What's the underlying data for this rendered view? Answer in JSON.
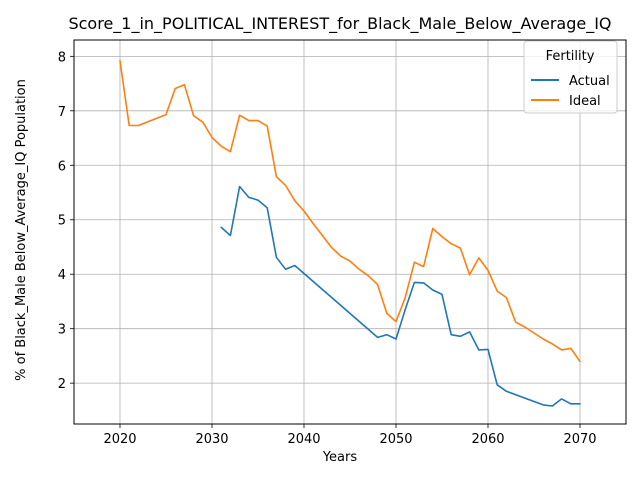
{
  "chart_data": {
    "type": "line",
    "title": "Score_1_in_POLITICAL_INTEREST_for_Black_Male_Below_Average_IQ",
    "xlabel": "Years",
    "ylabel": "% of Black_Male Below_Average_IQ Population",
    "xlim": [
      2015,
      2075
    ],
    "ylim": [
      1.25,
      8.3
    ],
    "xticks": [
      2020,
      2030,
      2040,
      2050,
      2060,
      2070
    ],
    "yticks": [
      2,
      3,
      4,
      5,
      6,
      7,
      8
    ],
    "grid": true,
    "legend": {
      "title": "Fertility",
      "placement": "top-right"
    },
    "series": [
      {
        "name": "Actual",
        "color": "#1f77b4",
        "x": [
          2031,
          2032,
          2033,
          2034,
          2035,
          2036,
          2037,
          2038,
          2039,
          2048,
          2049,
          2050,
          2051,
          2052,
          2053,
          2054,
          2055,
          2056,
          2057,
          2058,
          2059,
          2060,
          2061,
          2062,
          2066,
          2067,
          2068,
          2069,
          2070
        ],
        "y": [
          4.86,
          4.71,
          5.61,
          5.41,
          5.36,
          5.22,
          4.31,
          4.09,
          4.16,
          2.84,
          2.89,
          2.81,
          3.35,
          3.85,
          3.84,
          3.71,
          3.63,
          2.89,
          2.86,
          2.94,
          2.61,
          2.62,
          1.97,
          1.85,
          1.6,
          1.58,
          1.71,
          1.62,
          1.62
        ]
      },
      {
        "name": "Ideal",
        "color": "#ff7f0e",
        "x": [
          2020,
          2021,
          2022,
          2025,
          2026,
          2027,
          2028,
          2029,
          2030,
          2031,
          2032,
          2033,
          2034,
          2035,
          2036,
          2037,
          2038,
          2039,
          2040,
          2041,
          2042,
          2043,
          2044,
          2045,
          2046,
          2047,
          2048,
          2049,
          2050,
          2051,
          2052,
          2053,
          2054,
          2055,
          2056,
          2057,
          2058,
          2059,
          2060,
          2061,
          2062,
          2063,
          2064,
          2065,
          2066,
          2067,
          2068,
          2069,
          2070
        ],
        "y": [
          7.92,
          6.73,
          6.73,
          6.93,
          7.41,
          7.48,
          6.91,
          6.79,
          6.51,
          6.35,
          6.25,
          6.92,
          6.82,
          6.82,
          6.72,
          5.79,
          5.63,
          5.35,
          5.16,
          4.93,
          4.71,
          4.49,
          4.33,
          4.24,
          4.09,
          3.97,
          3.81,
          3.28,
          3.13,
          3.57,
          4.22,
          4.14,
          4.84,
          4.69,
          4.56,
          4.48,
          3.99,
          4.3,
          4.07,
          3.69,
          3.57,
          3.12,
          3.03,
          2.92,
          2.81,
          2.72,
          2.61,
          2.64,
          2.4
        ]
      }
    ]
  }
}
